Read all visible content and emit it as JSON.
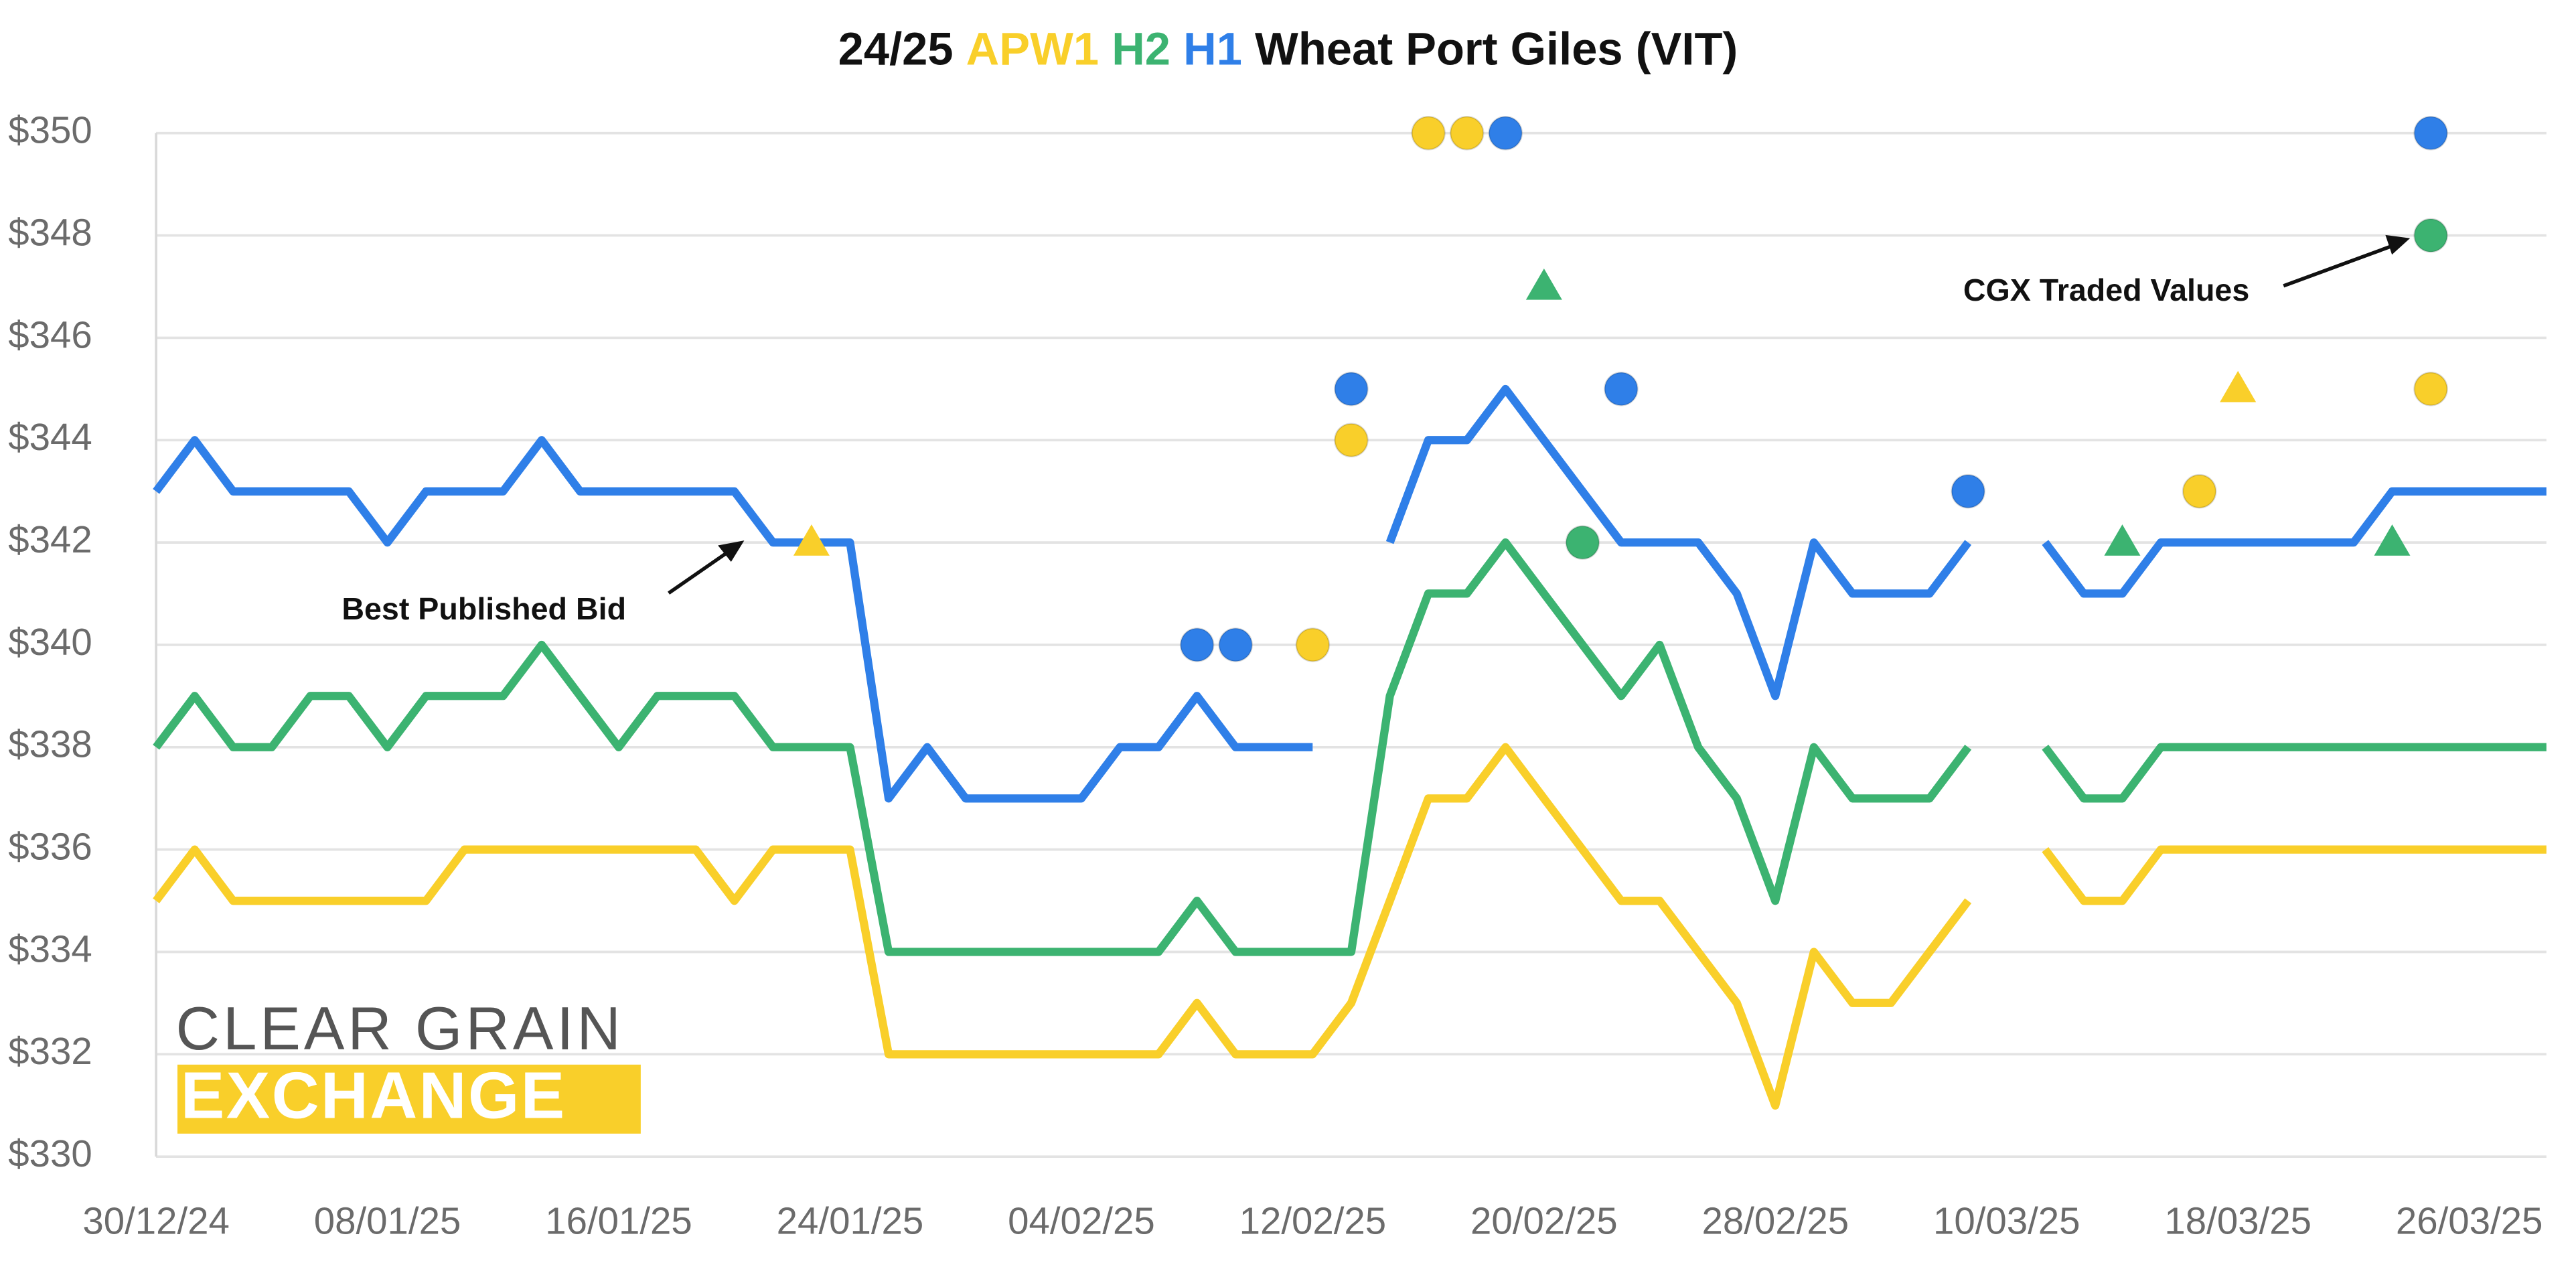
{
  "chart_data": {
    "type": "line",
    "title_prefix": "24/25",
    "title_suffix": "Wheat Port Giles (VIT)",
    "categories": [
      "30/12/24",
      null,
      null,
      null,
      null,
      null,
      "08/01/25",
      null,
      null,
      null,
      null,
      null,
      "16/01/25",
      null,
      null,
      null,
      null,
      null,
      "24/01/25",
      null,
      null,
      null,
      null,
      null,
      "04/02/25",
      null,
      null,
      null,
      null,
      null,
      "12/02/25",
      null,
      null,
      null,
      null,
      null,
      "20/02/25",
      null,
      null,
      null,
      null,
      null,
      "28/02/25",
      null,
      null,
      null,
      null,
      null,
      "10/03/25",
      null,
      null,
      null,
      null,
      null,
      "18/03/25",
      null,
      null,
      null,
      null,
      null,
      "26/03/25",
      null,
      null
    ],
    "series": [
      {
        "name": "APW1",
        "color": "#f9cf2a",
        "values": [
          335,
          336,
          335,
          335,
          335,
          335,
          335,
          335,
          336,
          336,
          336,
          336,
          336,
          336,
          336,
          335,
          336,
          336,
          336,
          332,
          332,
          332,
          332,
          332,
          332,
          332,
          332,
          333,
          332,
          332,
          332,
          333,
          335,
          337,
          337,
          338,
          337,
          336,
          335,
          335,
          334,
          333,
          331,
          334,
          333,
          333,
          334,
          335,
          null,
          336,
          335,
          335,
          336,
          336,
          336,
          336,
          336,
          336,
          336,
          336,
          336,
          336,
          336
        ],
        "traded": {
          "x": [
            17,
            30,
            31,
            33,
            34,
            53,
            54,
            59
          ],
          "values": [
            342,
            340,
            344,
            350,
            350,
            343,
            345,
            345
          ],
          "markers": [
            "triangle",
            "circle",
            "circle",
            "circle",
            "circle",
            "circle",
            "triangle",
            "circle"
          ]
        }
      },
      {
        "name": "H2",
        "color": "#3cb371",
        "values": [
          338,
          339,
          338,
          338,
          339,
          339,
          338,
          339,
          339,
          339,
          340,
          339,
          338,
          339,
          339,
          339,
          338,
          338,
          338,
          334,
          334,
          334,
          334,
          334,
          334,
          334,
          334,
          335,
          334,
          334,
          334,
          334,
          339,
          341,
          341,
          342,
          341,
          340,
          339,
          340,
          338,
          337,
          335,
          338,
          337,
          337,
          337,
          338,
          null,
          338,
          337,
          337,
          338,
          338,
          338,
          338,
          338,
          338,
          338,
          338,
          338,
          338,
          338
        ],
        "traded": {
          "x": [
            36,
            37,
            51,
            58,
            59
          ],
          "values": [
            347,
            342,
            342,
            342,
            348
          ],
          "markers": [
            "triangle",
            "circle",
            "triangle",
            "triangle",
            "circle"
          ]
        }
      },
      {
        "name": "H1",
        "color": "#2f7fe8",
        "values": [
          343,
          344,
          343,
          343,
          343,
          343,
          342,
          343,
          343,
          343,
          344,
          343,
          343,
          343,
          343,
          343,
          342,
          342,
          342,
          337,
          338,
          337,
          337,
          337,
          337,
          338,
          338,
          339,
          338,
          338,
          338,
          null,
          342,
          344,
          344,
          345,
          344,
          343,
          342,
          342,
          342,
          341,
          339,
          342,
          341,
          341,
          341,
          342,
          null,
          342,
          341,
          341,
          342,
          342,
          342,
          342,
          342,
          342,
          343,
          343,
          343,
          343,
          343
        ],
        "traded": {
          "x": [
            27,
            28,
            31,
            35,
            38,
            47,
            59
          ],
          "values": [
            340,
            340,
            345,
            350,
            345,
            343,
            350
          ],
          "markers": [
            "circle",
            "circle",
            "circle",
            "circle",
            "circle",
            "circle",
            "circle"
          ]
        }
      }
    ],
    "ylim": [
      330,
      350
    ],
    "yticks": [
      {
        "value": 330,
        "label": "$330"
      },
      {
        "value": 332,
        "label": "$332"
      },
      {
        "value": 334,
        "label": "$334"
      },
      {
        "value": 336,
        "label": "$336"
      },
      {
        "value": 338,
        "label": "$338"
      },
      {
        "value": 340,
        "label": "$340"
      },
      {
        "value": 342,
        "label": "$342"
      },
      {
        "value": 344,
        "label": "$344"
      },
      {
        "value": 346,
        "label": "$346"
      },
      {
        "value": 348,
        "label": "$348"
      },
      {
        "value": 350,
        "label": "$350"
      }
    ],
    "grid": true,
    "annotations": [
      "Best Published Bid",
      "CGX Traded Values"
    ],
    "logo": [
      "CLEAR GRAIN",
      "EXCHANGE"
    ]
  }
}
